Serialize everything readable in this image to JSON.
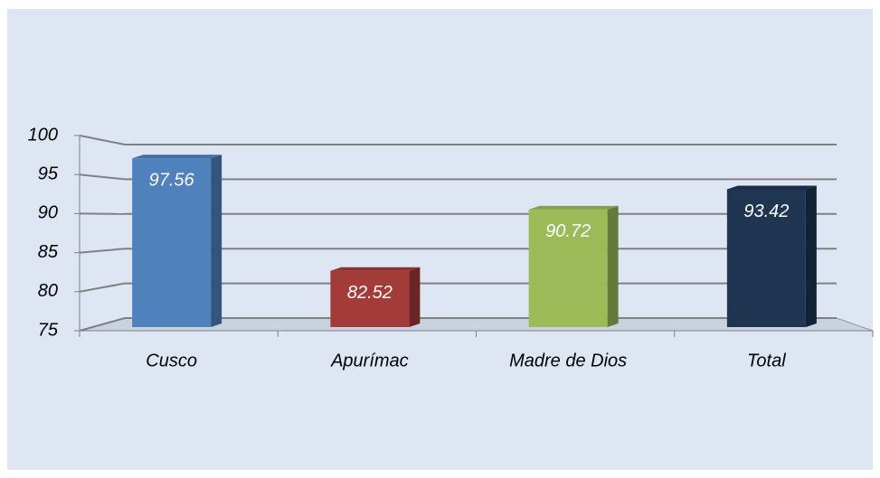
{
  "chart_data": {
    "type": "bar",
    "categories": [
      "Cusco",
      "Apurímac",
      "Madre de Dios",
      "Total"
    ],
    "values": [
      97.56,
      82.52,
      90.72,
      93.42
    ],
    "colors": [
      "#4f81bd",
      "#a33b39",
      "#9bbb59",
      "#1f3552"
    ],
    "ylim": [
      75,
      100
    ],
    "yticks": [
      75,
      80,
      85,
      90,
      95,
      100
    ],
    "grid": true
  }
}
